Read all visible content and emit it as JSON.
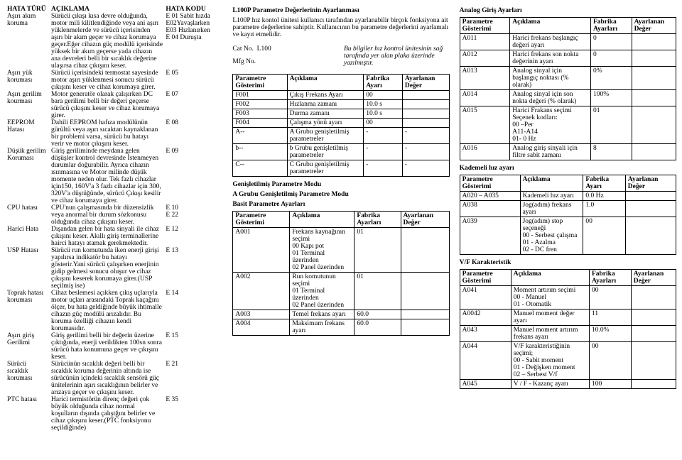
{
  "col1": {
    "head": {
      "c1": "HATA TÜRÜ",
      "c2": "AÇIKLAMA",
      "c3": "HATA KODU"
    },
    "rows": [
      {
        "turu": "Aşırı akım koruma",
        "acik": "Sürücü çıkışı kısa devre olduğunda, motor mili kilitlendiğinde veya ani aşırı yüklenmelerde ve sürücü içerisinden aşırı bir akım geçer ve cihaz korumaya geçer.Eğer cihazın güç modülü içerisinde yüksek bir akım geçerse yada cihazın ana devreleri belli bir sıcaklık değerine ulaşırsa cihaz çıkışını keser.",
        "kod": "E 01 Sabit hızda\nE02Yavaşlarken\nE03 Hızlanırken\nE 04 Duruşta"
      },
      {
        "turu": "Aşırı yük koruması",
        "acik": "Sürücü içerisindeki termostat sayesinde motor aşırı yüklenmesi sonucu sürücü çıkışını keser ve cihaz korumaya girer.",
        "kod": "E 05"
      },
      {
        "turu": "Aşırı gerilim kourması",
        "acik": "Motor generatör olarak çalışırken DC bara gerilimi belli bir değeri geçerse sürücü çıkışını keser ve cihaz korumaya girer.",
        "kod": "E 07"
      },
      {
        "turu": "EEPROM Hatası",
        "acik": "Dahili EEPROM hafıza modülünün gürültü veya aşırı sıcaktan kaynaklanan bir problemi varsa, sürücü bu hatayı verir ve motor çıkışını keser.",
        "kod": "E 08"
      },
      {
        "turu": "Düşük gerilim Koruması",
        "acik": "Giriş geriliminde meydana gelen düşüşler kontrol devresinde İstenmeyen durumlar doğurabilir. Ayrıca cihazın ısınmasına ve Motor milinde düşük momente neden olur. Tek fazlı cihazlar için150, 160V'a 3 fazlı cihazlar için 300, 320V'a düştüğünde, sürücü Çıkışı kesilir ve cihaz korumaya girer.",
        "kod": "E 09"
      },
      {
        "turu": "CPU hatası",
        "acik": "CPU'nun çalışmasında bir düzensizlik veya anormal bir durum sözkonusu olduğunda cihaz çıkışını keser.",
        "kod": "E 10\nE 22"
      },
      {
        "turu": "Harici Hata",
        "acik": "Dışandan gelen bir hata sinyali ile cihaz çıkışını keser. Akıllı giriş terminallerine hairci hatayı atamak gerekmektedir.",
        "kod": "E 12"
      },
      {
        "turu": "USP Hatası",
        "acik": "Sürücü run komutunda iken enerji girişi yapılırsa indikatör bu hatayı gösterir.Yani sürücü çalışırken enerjinin gidip gelmesi sonucu oluşur ve cihaz çıkışını keserek korumaya girer.(USP seçilmiş ise)",
        "kod": "E 13"
      },
      {
        "turu": "Toprak hatası koruması",
        "acik": "Cihaz beslemesi açıkken çıkış uçlarıyla motor uçları arasındaki Toprak kaçağını ölçer, bu hata geldiğinde büyük ihtimalle cihazın güç modülü arızalıdır. Bu koruma özelliği cihazın kendi korumasıdır.",
        "kod": "E 14"
      },
      {
        "turu": "Aşırı giriş Gerilimi",
        "acik": "Giriş gerilimi belli bir değerin üzerine çıktığında, enerji verildikten 100sn sonra sürücü hata konumuna geçer ve çıkışını keser.",
        "kod": "E 15"
      },
      {
        "turu": "Sürücü sıcaklık koruması",
        "acik": "Sürücünün sıcaklık değeri belli bir sıcaklık koruma değerinin altında ise sürücünün içindeki sıcaklık sensörü güç ünitelerinin aşırı sıcaklığının belirler ve arızaya geçer ve çıkışını keser.",
        "kod": "E 21"
      },
      {
        "turu": "PTC hatası",
        "acik": "Harici termistörün direnç değeri çok büyük olduğunda cihaz normal koşulların dışında çalıştğını belirler ve cihaz çıkışını keser.(PTC fonksiyonu seçildiğinde)",
        "kod": "E 35"
      }
    ]
  },
  "col2": {
    "title": "L100P Parametre Değerlerinin Ayarlanması",
    "intro": "L100P hız kontol ünitesi kullanıcı tarafından ayarlanabilir birçok fonksiyona ait parametre değerlerine sahiptir. Kullanıcının bu parametre değerlerini ayarlamalı ve kayıt etmelidir.",
    "cat": {
      "l": "Cat No.",
      "v": "L100"
    },
    "mfg": {
      "l": "Mfg No."
    },
    "note": "Bu bilgiler hız kontrol ünitesinin sağ tarafında yer alan plaka üzerinde yazılmıştır.",
    "t1": {
      "h": {
        "c1": "Parametre Gösterimi",
        "c2": "Açıklama",
        "c3": "Fabrika Ayarı",
        "c4": "Ayarlanan Değer"
      },
      "r": [
        {
          "p": "F001",
          "a": "Çıkış Frekans Ayarı",
          "f": "00",
          "d": ""
        },
        {
          "p": "F002",
          "a": "Hızlanma zamanı",
          "f": "10.0 s",
          "d": ""
        },
        {
          "p": "F003",
          "a": "Durma zamanı",
          "f": "10.0 s",
          "d": ""
        },
        {
          "p": "F004",
          "a": "Çalışma yönü ayarı",
          "f": "00",
          "d": ""
        },
        {
          "p": "A--",
          "a": "A Grubu genişletilmiş parametreler",
          "f": "-",
          "d": "-"
        },
        {
          "p": "b--",
          "a": "b Grubu genişletilmiş parametreler",
          "f": "-",
          "d": "-"
        },
        {
          "p": "C--",
          "a": "C Grubu genişletilmiş parametreler",
          "f": "-",
          "d": "-"
        }
      ]
    },
    "t2": {
      "title1": "Genişletilmiş Parametre Modu",
      "title2": "A Grubu Genişletilmiş Parametre Modu",
      "title3": "Basit Parametre Ayarları",
      "h": {
        "c1": "Parametre Gösterimi",
        "c2": "Açıklama",
        "c3": "Fabrika Ayarları",
        "c4": "Ayarlanan Değer"
      },
      "r": [
        {
          "p": "A001",
          "a": "Frekans kaynağının seçimi\n00 Kapı pot\n01 Terminal üzerinden\n02 Panel üzerinden",
          "f": "01",
          "d": ""
        },
        {
          "p": "A002",
          "a": "Run komutunun seçimi\n01 Terminal üzerinden\n02 Panel üzerinden",
          "f": "01",
          "d": ""
        },
        {
          "p": "A003",
          "a": "Temel frekans ayarı",
          "f": "60.0",
          "d": ""
        },
        {
          "p": "A004",
          "a": "Maksimum frekans ayarı",
          "f": "60.0",
          "d": ""
        }
      ]
    }
  },
  "col3": {
    "s1": {
      "title": "Analog Giriş Ayarları",
      "h": {
        "c1": "Parametre Gösterimi",
        "c2": "Açıklama",
        "c3": "Fabrika Ayarları",
        "c4": "Ayarlanan Değer"
      },
      "r": [
        {
          "p": "A011",
          "a": "Harici frekans başlangıç değeri ayarı",
          "f": "0",
          "d": ""
        },
        {
          "p": "A012",
          "a": "Harici frekans son nokta değerinin ayarı",
          "f": "0",
          "d": ""
        },
        {
          "p": "A013",
          "a": "Analog sinyal için başlangıç noktası (% olarak)",
          "f": "0%",
          "d": ""
        },
        {
          "p": "A014",
          "a": "Analog sinyal için son nokta değeri (% olarak)",
          "f": "100%",
          "d": ""
        },
        {
          "p": "A015",
          "a": "Harici Frakans seçimi\nSeçenek kodları:\n00 –Per\nA11-A14\n01- 0 Hz",
          "f": "01",
          "d": ""
        },
        {
          "p": "A016",
          "a": "Analog giriş sinyali için filtre sabit zamanı",
          "f": "8",
          "d": ""
        }
      ]
    },
    "s2": {
      "title": "Kademeli hız ayarı",
      "h": {
        "c1": "Parametre Gösterimi",
        "c2": "Açıklama",
        "c3": "Fabrika Ayarı",
        "c4": "Ayarlanan Değer"
      },
      "r": [
        {
          "p": "A020 – A035",
          "a": "Kademeli hız ayarı",
          "f": "0.0  Hz",
          "d": ""
        },
        {
          "p": "A038",
          "a": "Jog(adım) frekans ayarı",
          "f": "1.0",
          "d": ""
        },
        {
          "p": "A039",
          "a": "Jog(adım) stop seçeneği\n00 - Serbest çalışma\n01 - Azalma\n02 - DC fren",
          "f": "00",
          "d": ""
        }
      ]
    },
    "s3": {
      "title": "V/F Karakteristik",
      "h": {
        "c1": "Parametre Gösterimi",
        "c2": "Açıklama",
        "c3": "Fabrika Ayarları",
        "c4": "Ayarlanan Değer"
      },
      "r": [
        {
          "p": "A041",
          "a": "Moment artırım seçimi\n00 - Manuel\n01 - Otomatik",
          "f": "00",
          "d": ""
        },
        {
          "p": "A0042",
          "a": "Manuel moment değer ayarı",
          "f": "11",
          "d": ""
        },
        {
          "p": "A043",
          "a": "Manuel moment artırım frekans ayarı",
          "f": "10.0%",
          "d": ""
        },
        {
          "p": "A044",
          "a": "V/F karakteristiğinin seçimi;\n00 - Sabit moment\n01 - Değişken moment\n02 – Serbest V/f",
          "f": "00",
          "d": ""
        },
        {
          "p": "A045",
          "a": "V / F - Kazanç ayarı",
          "f": "100",
          "d": ""
        }
      ]
    }
  }
}
